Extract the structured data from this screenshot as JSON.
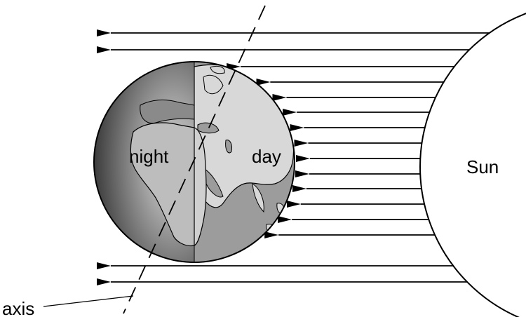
{
  "labels": {
    "night": "night",
    "day": "day",
    "sun": "Sun",
    "axis": "axis"
  },
  "colors": {
    "stroke": "#000000",
    "night_shade": "#4a4a4a",
    "night_mid": "#707070",
    "night_light": "#b0b0b0",
    "day_ocean": "#9a9a9a",
    "day_land": "#d6d6d6",
    "night_land": "#bcbcbc",
    "sun_fill": "#ffffff"
  },
  "icons": {
    "earth": "earth-globe-icon",
    "sun": "sun-disc-icon"
  }
}
